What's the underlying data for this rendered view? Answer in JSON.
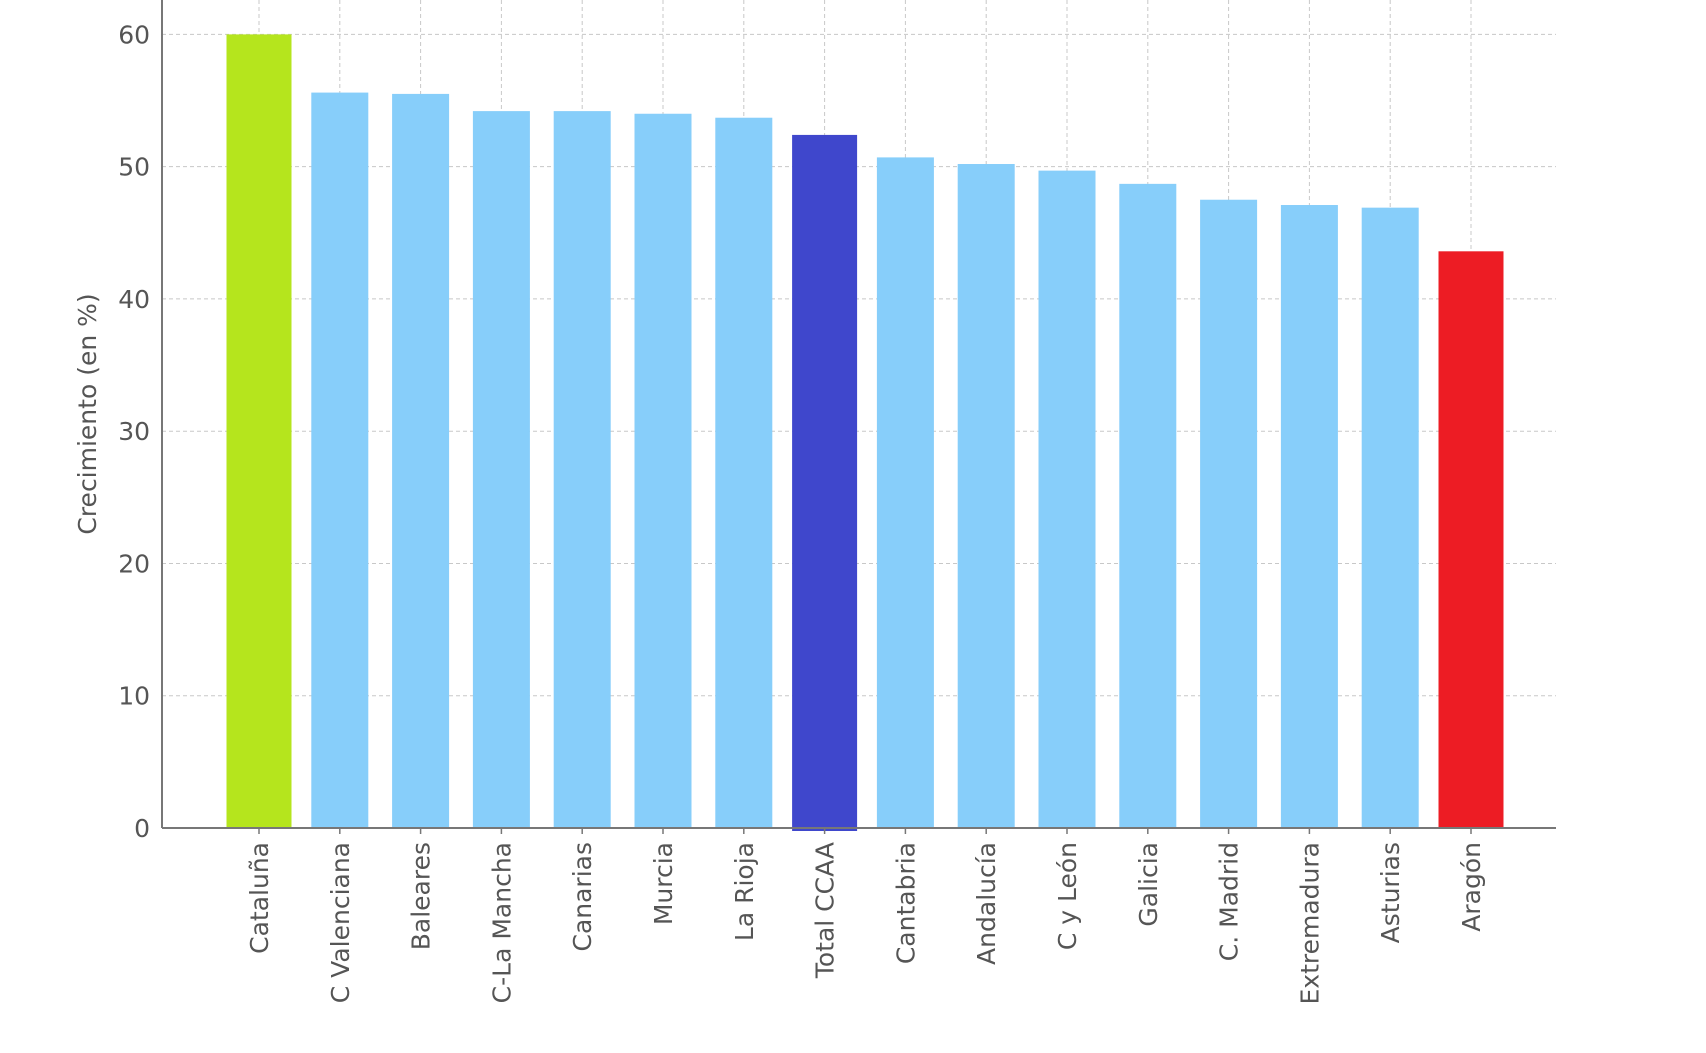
{
  "chart_data": {
    "type": "bar",
    "title": "",
    "xlabel": "",
    "ylabel": "Crecimiento (en %)",
    "ylim": [
      0,
      62.6
    ],
    "yticks": [
      0,
      10,
      20,
      30,
      40,
      50,
      60
    ],
    "grid": true,
    "categories": [
      "Cataluña",
      "C Valenciana",
      "Baleares",
      "C-La Mancha",
      "Canarias",
      "Murcia",
      "La Rioja",
      "Total CCAA",
      "Cantabria",
      "Andalucía",
      "C y León",
      "Galicia",
      "C. Madrid",
      "Extremadura",
      "Asturias",
      "Aragón"
    ],
    "values": [
      60.0,
      55.6,
      55.5,
      54.2,
      54.2,
      54.0,
      53.7,
      52.4,
      50.7,
      50.2,
      49.7,
      48.7,
      47.5,
      47.1,
      46.9,
      43.6
    ],
    "colors": [
      "#b5e51d",
      "#87cefa",
      "#87cefa",
      "#87cefa",
      "#87cefa",
      "#87cefa",
      "#87cefa",
      "#3f47cc",
      "#87cefa",
      "#87cefa",
      "#87cefa",
      "#87cefa",
      "#87cefa",
      "#87cefa",
      "#87cefa",
      "#ed1c24"
    ]
  }
}
